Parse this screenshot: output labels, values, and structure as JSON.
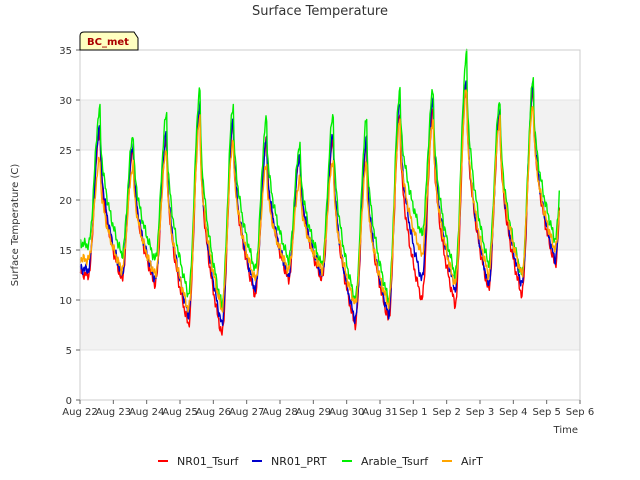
{
  "chart_data": {
    "type": "line",
    "title": "Surface Temperature",
    "xlabel": "Time",
    "ylabel": "Surface Temperature (C)",
    "badge": "BC_met",
    "ylim": [
      0,
      35
    ],
    "yticks": [
      0,
      5,
      10,
      15,
      20,
      25,
      30,
      35
    ],
    "xlim": [
      "Aug 22",
      "Sep 6"
    ],
    "xtick_labels": [
      "Aug 22",
      "Aug 23",
      "Aug 24",
      "Aug 25",
      "Aug 26",
      "Aug 27",
      "Aug 28",
      "Aug 29",
      "Aug 30",
      "Aug 31",
      "Sep 1",
      "Sep 2",
      "Sep 3",
      "Sep 4",
      "Sep 5",
      "Sep 6"
    ],
    "grid": "horizontal alternating bands",
    "legend_position": "bottom-center",
    "daily_dates": [
      "Aug 22",
      "Aug 23",
      "Aug 24",
      "Aug 25",
      "Aug 26",
      "Aug 27",
      "Aug 28",
      "Aug 29",
      "Aug 30",
      "Aug 31",
      "Sep 1",
      "Sep 2",
      "Sep 3",
      "Sep 4",
      "Sep 5"
    ],
    "series": [
      {
        "name": "NR01_Tsurf",
        "color": "#ff0000",
        "daily_max": [
          27.0,
          25.0,
          26.0,
          29.0,
          27.5,
          26.0,
          24.5,
          26.0,
          25.5,
          28.5,
          29.0,
          31.5,
          28.5,
          31.0
        ],
        "daily_min": [
          12.5,
          12.0,
          11.5,
          7.5,
          6.5,
          10.5,
          12.0,
          12.0,
          7.5,
          8.0,
          10.0,
          9.5,
          11.0,
          10.5,
          13.5
        ]
      },
      {
        "name": "NR01_PRT",
        "color": "#0000cc",
        "daily_max": [
          27.5,
          25.5,
          26.5,
          29.5,
          28.0,
          26.0,
          24.5,
          26.5,
          26.0,
          30.0,
          30.0,
          32.0,
          29.0,
          31.5
        ],
        "daily_min": [
          13.0,
          12.5,
          12.0,
          8.5,
          7.5,
          11.0,
          12.5,
          12.5,
          8.0,
          8.5,
          12.0,
          11.0,
          11.5,
          11.5,
          14.0
        ]
      },
      {
        "name": "Arable_Tsurf",
        "color": "#00ee00",
        "daily_max": [
          29.0,
          26.5,
          28.5,
          31.0,
          29.5,
          28.0,
          25.5,
          28.5,
          28.0,
          31.0,
          31.0,
          34.5,
          30.0,
          32.0
        ],
        "daily_min": [
          15.5,
          14.5,
          14.0,
          10.5,
          9.5,
          13.0,
          14.0,
          13.5,
          10.0,
          10.0,
          16.5,
          12.5,
          13.5,
          12.5,
          16.0
        ]
      },
      {
        "name": "AirT",
        "color": "#ffa500",
        "daily_max": [
          24.0,
          23.5,
          25.0,
          28.0,
          26.0,
          23.5,
          22.0,
          24.0,
          23.5,
          28.0,
          28.0,
          31.0,
          28.0,
          29.5
        ],
        "daily_min": [
          14.0,
          13.0,
          12.5,
          9.0,
          9.0,
          12.0,
          13.0,
          13.0,
          9.5,
          9.5,
          14.5,
          11.5,
          12.5,
          12.5,
          15.0
        ]
      }
    ]
  }
}
